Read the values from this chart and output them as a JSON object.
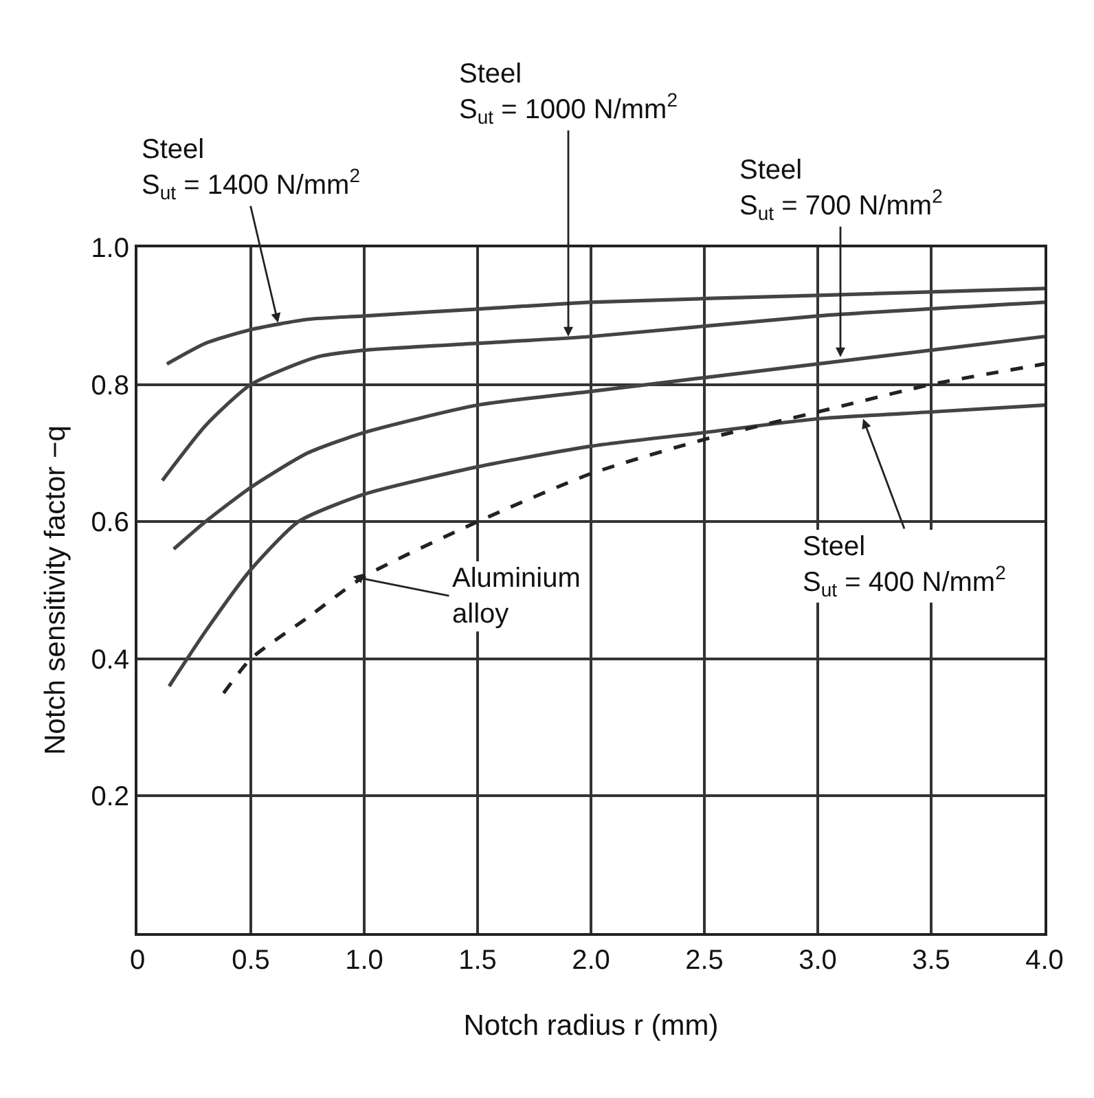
{
  "chart_data": {
    "type": "line",
    "xlabel": "Notch radius r (mm)",
    "ylabel": "Notch sensitivity factor −q",
    "xlim": [
      0,
      4
    ],
    "ylim": [
      0,
      1
    ],
    "xticks": [
      0,
      0.5,
      {
        "value": 1,
        "label": "1.0"
      },
      1.5,
      {
        "value": 2,
        "label": "2.0"
      },
      2.5,
      {
        "value": 3,
        "label": "3.0"
      },
      3.5,
      {
        "value": 4,
        "label": "4.0"
      }
    ],
    "yticks": [
      0.2,
      0.4,
      0.6,
      0.8,
      {
        "value": 1,
        "label": "1.0"
      }
    ],
    "grid": true,
    "marker": "none",
    "series": [
      {
        "color": "#444444",
        "line_style": "solid",
        "x": [
          0.13,
          0.3,
          0.5,
          0.75,
          1.0,
          1.5,
          2.0,
          3.0,
          4.0
        ],
        "values": [
          0.83,
          0.86,
          0.88,
          0.895,
          0.9,
          0.91,
          0.92,
          0.93,
          0.94
        ]
      },
      {
        "color": "#444444",
        "line_style": "solid",
        "x": [
          0.11,
          0.3,
          0.5,
          0.79,
          1.0,
          1.5,
          2.0,
          3.0,
          4.0
        ],
        "values": [
          0.66,
          0.74,
          0.8,
          0.84,
          0.85,
          0.86,
          0.87,
          0.9,
          0.92
        ]
      },
      {
        "color": "#444444",
        "line_style": "solid",
        "x": [
          0.16,
          0.3,
          0.5,
          0.75,
          1.0,
          1.5,
          2.0,
          2.5,
          3.0,
          3.5,
          4.0
        ],
        "values": [
          0.56,
          0.6,
          0.65,
          0.7,
          0.73,
          0.77,
          0.79,
          0.81,
          0.83,
          0.85,
          0.87
        ]
      },
      {
        "color": "#444444",
        "line_style": "solid",
        "x": [
          0.14,
          0.3,
          0.5,
          0.71,
          1.0,
          1.5,
          2.0,
          2.5,
          3.0,
          3.5,
          4.0
        ],
        "values": [
          0.36,
          0.44,
          0.53,
          0.6,
          0.64,
          0.68,
          0.71,
          0.73,
          0.75,
          0.76,
          0.77
        ]
      },
      {
        "color": "#222222",
        "line_style": "dashed",
        "x": [
          0.38,
          0.5,
          0.75,
          1.0,
          1.5,
          2.0,
          2.5,
          3.0,
          3.5,
          4.0
        ],
        "values": [
          0.35,
          0.4,
          0.46,
          0.52,
          0.6,
          0.67,
          0.72,
          0.76,
          0.8,
          0.83
        ]
      }
    ],
    "annotations": [
      {
        "text": "Steel\nS$_{ut}$ = 1400 N/mm$^{2}$",
        "x": 0.62,
        "y": 0.89
      },
      {
        "text": "Steel\nS$_{ut}$ = 1000 N/mm$^{2}$",
        "x": 1.9,
        "y": 0.87
      },
      {
        "text": "Steel\nS$_{ut}$ = 700 N/mm$^{2}$",
        "x": 3.1,
        "y": 0.84
      },
      {
        "text": "Steel\nS$_{ut}$ = 400 N/mm$^{2}$",
        "x": 3.2,
        "y": 0.75
      },
      {
        "text": "Aluminium\nalloy",
        "x": 0.95,
        "y": 0.52
      }
    ]
  }
}
